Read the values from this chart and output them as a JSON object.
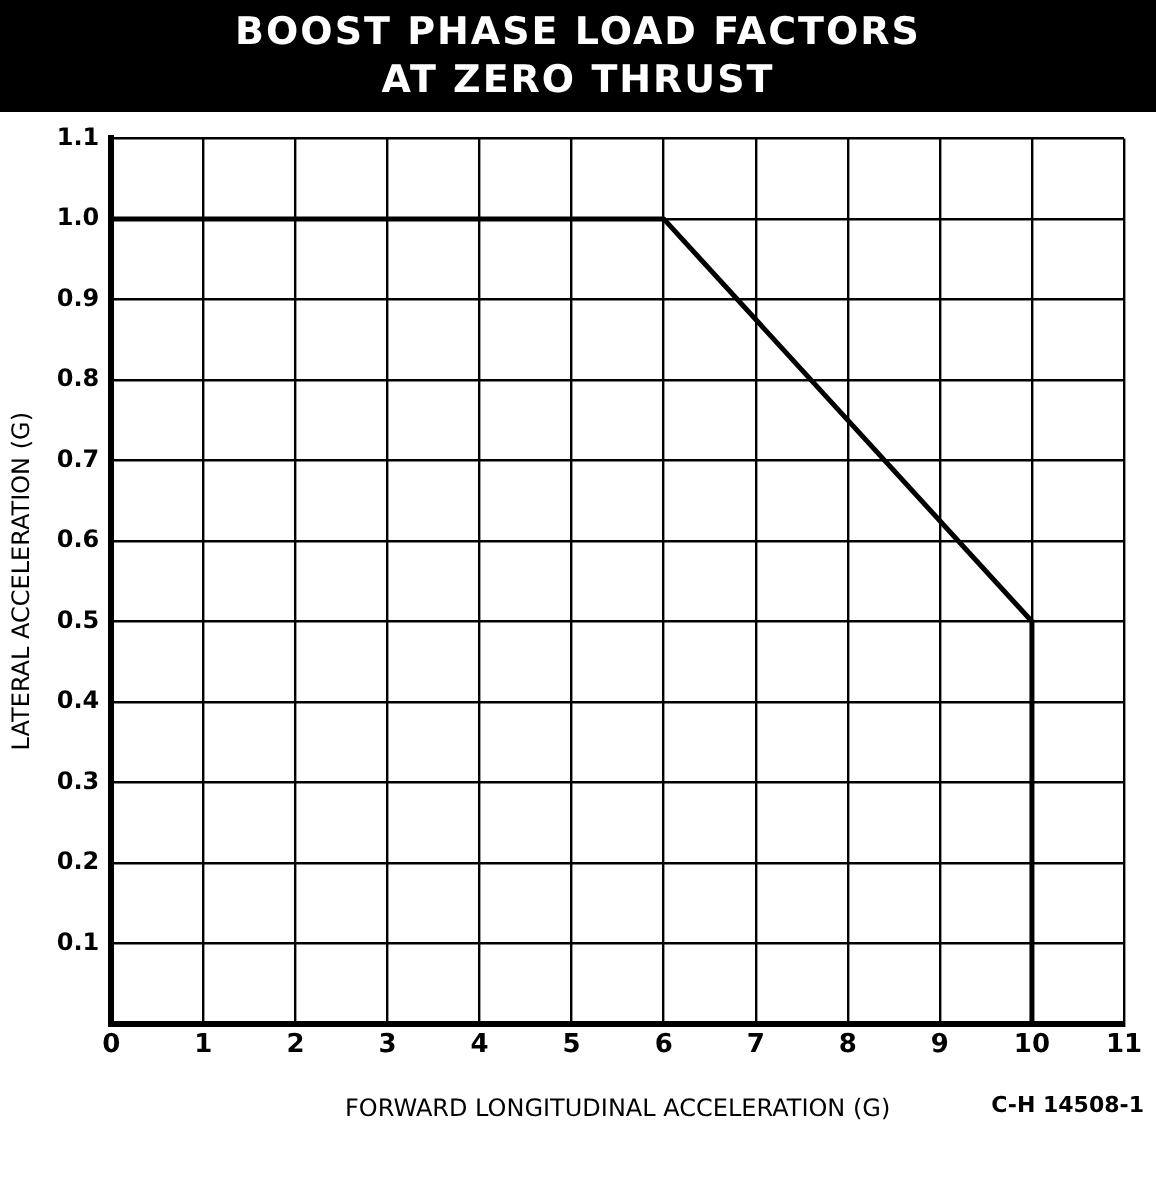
{
  "chart_data": {
    "type": "line",
    "title": "BOOST PHASE LOAD FACTORS\nAT ZERO THRUST",
    "xlabel": "FORWARD LONGITUDINAL ACCELERATION (G)",
    "ylabel": "LATERAL ACCELERATION (G)",
    "x": [
      0,
      6,
      10,
      10
    ],
    "series": [
      {
        "color": "#000000",
        "values": [
          1.0,
          1.0,
          0.5,
          0
        ]
      }
    ],
    "xlim": [
      0,
      11
    ],
    "xticks": [
      0,
      1,
      2,
      3,
      4,
      5,
      6,
      7,
      8,
      9,
      10,
      11
    ],
    "ylim": [
      0,
      1.1
    ],
    "yticks": [
      {
        "value": 0,
        "label": null
      },
      0.1,
      0.2,
      0.3,
      0.4,
      0.5,
      0.6,
      0.7,
      0.8,
      0.9,
      {
        "value": 1,
        "label": "1.0"
      },
      1.1
    ],
    "grid": true,
    "legend": false,
    "marker": "none",
    "line_style": "solid",
    "annotations": [
      "C-H 14508-1"
    ]
  }
}
